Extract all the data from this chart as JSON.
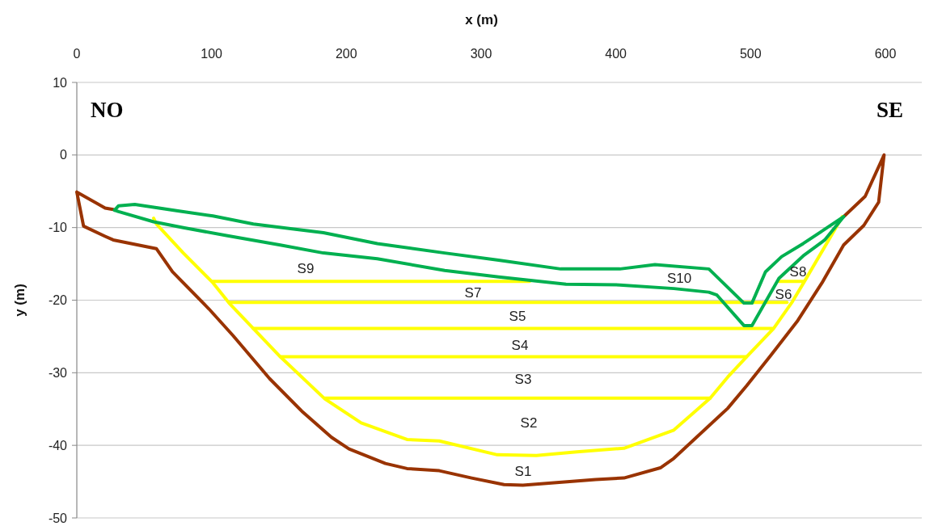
{
  "chart_data": {
    "type": "line",
    "xlabel": "x (m)",
    "ylabel": "y (m)",
    "xlim": [
      0,
      627
    ],
    "xticks": [
      0,
      100,
      200,
      300,
      400,
      500,
      600
    ],
    "ylim": [
      -50,
      10
    ],
    "yticks": [
      -50,
      -40,
      -30,
      -20,
      -10,
      0,
      10
    ],
    "grid": "y",
    "series": [
      {
        "color": "#993300",
        "x": [
          27,
          21,
          0,
          5,
          21,
          27,
          59,
          71,
          98,
          116,
          143,
          167,
          189,
          202,
          229,
          245,
          269,
          293,
          317,
          331,
          358,
          385,
          406,
          433,
          443,
          483,
          497,
          515,
          535,
          553,
          569,
          584,
          595,
          599,
          585,
          569
        ],
        "values": [
          -7.5,
          -7.3,
          -5.1,
          -9.8,
          -11.2,
          -11.7,
          -12.9,
          -16.1,
          -21.2,
          -24.9,
          -30.8,
          -35.3,
          -38.9,
          -40.5,
          -42.5,
          -43.2,
          -43.5,
          -44.5,
          -45.4,
          -45.5,
          -45.1,
          -44.7,
          -44.5,
          -43.1,
          -41.8,
          -34.9,
          -31.8,
          -27.6,
          -22.8,
          -17.6,
          -12.4,
          -9.7,
          -6.5,
          0,
          -5.7,
          -8.5
        ]
      },
      {
        "color": "#ffff00",
        "x": [
          57,
          59,
          79,
          101,
          113,
          131,
          151,
          184,
          211,
          245,
          269,
          312,
          341,
          371,
          406,
          443,
          470,
          483,
          497,
          517,
          531,
          540,
          568
        ],
        "values": [
          -8.7,
          -9.5,
          -13.5,
          -17.6,
          -20.4,
          -23.9,
          -27.8,
          -33.6,
          -36.9,
          -39.2,
          -39.4,
          -41.3,
          -41.4,
          -40.9,
          -40.4,
          -37.9,
          -33.5,
          -30.6,
          -27.8,
          -23.9,
          -20.2,
          -17.4,
          -8.5
        ]
      },
      {
        "color": "#ffff00",
        "x": [
          101,
          336
        ],
        "values": [
          -17.4,
          -17.4
        ]
      },
      {
        "color": "#ffff00",
        "x": [
          521,
          539
        ],
        "values": [
          -17.4,
          -17.4
        ]
      },
      {
        "color": "#ffff00",
        "x": [
          113,
          527
        ],
        "values": [
          -20.3,
          -20.3
        ]
      },
      {
        "color": "#ffff00",
        "x": [
          131,
          516
        ],
        "values": [
          -23.9,
          -23.9
        ]
      },
      {
        "color": "#ffff00",
        "x": [
          151,
          497
        ],
        "values": [
          -27.8,
          -27.8
        ]
      },
      {
        "color": "#ffff00",
        "x": [
          184,
          470
        ],
        "values": [
          -33.5,
          -33.5
        ]
      },
      {
        "color": "#00b050",
        "x": [
          28,
          31,
          43,
          75,
          101,
          131,
          161,
          183,
          223,
          273,
          313,
          359,
          363,
          403,
          429,
          469,
          495,
          501,
          511,
          523,
          539,
          569
        ],
        "values": [
          -7.6,
          -7,
          -6.8,
          -7.7,
          -8.4,
          -9.5,
          -10.2,
          -10.7,
          -12.2,
          -13.5,
          -14.5,
          -15.7,
          -15.7,
          -15.7,
          -15.1,
          -15.7,
          -20.4,
          -20.4,
          -16.1,
          -14,
          -12.2,
          -8.5
        ]
      },
      {
        "color": "#00b050",
        "x": [
          28,
          31,
          57,
          79,
          111,
          151,
          183,
          223,
          273,
          313,
          363,
          403,
          443,
          469,
          475,
          495,
          501,
          521,
          539,
          555,
          569
        ],
        "values": [
          -7.6,
          -7.8,
          -9.2,
          -10,
          -11.1,
          -12.4,
          -13.5,
          -14.3,
          -15.9,
          -16.8,
          -17.8,
          -17.9,
          -18.4,
          -18.9,
          -19.3,
          -23.5,
          -23.5,
          -17,
          -13.9,
          -11.7,
          -8.5
        ]
      }
    ],
    "annotations": [
      "NO",
      "SE",
      "S1",
      "S2",
      "S3",
      "S4",
      "S5",
      "S6",
      "S7",
      "S8",
      "S9",
      "S10"
    ]
  }
}
